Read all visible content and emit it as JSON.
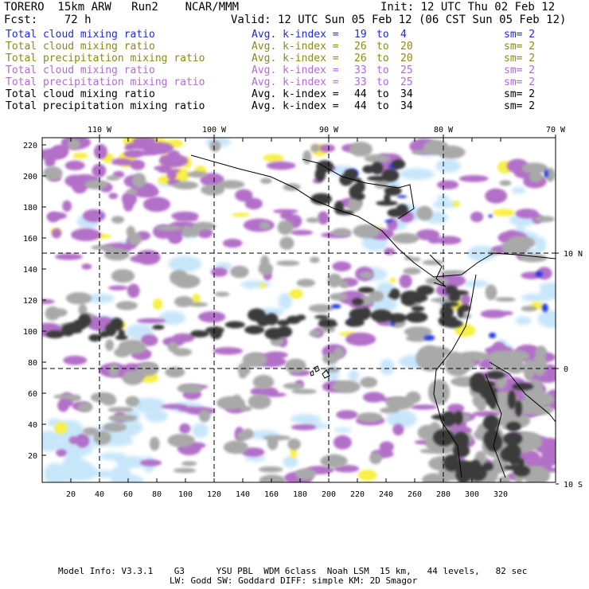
{
  "header": {
    "left_line1": "TORERO  15km ARW   Run2    NCAR/MMM",
    "right_line1": "Init: 12 UTC Thu 02 Feb 12",
    "left_line2": "Fcst:    72 h",
    "right_line2": "Valid: 12 UTC Sun 05 Feb 12 (06 CST Sun 05 Feb 12)"
  },
  "legend": [
    {
      "field": "Total cloud mixing ratio",
      "avg": "Avg. k-index =",
      "k_from": "19",
      "to": "to",
      "k_to": "4",
      "sm": "sm= 2",
      "color": "#1f2bd0"
    },
    {
      "field": "Total cloud mixing ratio",
      "avg": "Avg. k-index =",
      "k_from": "26",
      "to": "to",
      "k_to": "20",
      "sm": "sm= 2",
      "color": "#8a8a1a"
    },
    {
      "field": "Total precipitation mixing ratio",
      "avg": "Avg. k-index =",
      "k_from": "26",
      "to": "to",
      "k_to": "20",
      "sm": "sm= 2",
      "color": "#8a8a1a"
    },
    {
      "field": "Total cloud mixing ratio",
      "avg": "Avg. k-index =",
      "k_from": "33",
      "to": "to",
      "k_to": "25",
      "sm": "sm= 2",
      "color": "#b36ad6"
    },
    {
      "field": "Total precipitation mixing ratio",
      "avg": "Avg. k-index =",
      "k_from": "33",
      "to": "to",
      "k_to": "25",
      "sm": "sm= 2",
      "color": "#b36ad6"
    },
    {
      "field": "Total cloud mixing ratio",
      "avg": "Avg. k-index =",
      "k_from": "44",
      "to": "to",
      "k_to": "34",
      "sm": "sm= 2",
      "color": "#000000"
    },
    {
      "field": "Total precipitation mixing ratio",
      "avg": "Avg. k-index =",
      "k_from": "44",
      "to": "to",
      "k_to": "34",
      "sm": "sm= 2",
      "color": "#000000"
    }
  ],
  "map": {
    "lon_labels": [
      "110 W",
      "100 W",
      "90 W",
      "80 W",
      "70 W"
    ],
    "lat_labels": [
      "10 N",
      "0",
      "10 S"
    ],
    "x_ticks": [
      "20",
      "40",
      "60",
      "80",
      "100",
      "120",
      "140",
      "160",
      "180",
      "200",
      "220",
      "240",
      "260",
      "280",
      "300",
      "320"
    ],
    "y_ticks": [
      "220",
      "200",
      "180",
      "160",
      "140",
      "120",
      "100",
      "80",
      "60",
      "40",
      "20"
    ],
    "colors": {
      "light_blue": "#c8e6fa",
      "blue": "#2a3fe0",
      "yellow": "#f7f04a",
      "violet": "#b270c8",
      "light_gray": "#a9a9a9",
      "dark_gray": "#3a3a3a"
    }
  },
  "footer": {
    "line1": "Model Info: V3.3.1    G3      YSU PBL  WDM 6class  Noah LSM  15 km,   44 levels,   82 sec",
    "line2": "LW: Godd SW: Goddard DIFF: simple KM: 2D Smagor"
  }
}
